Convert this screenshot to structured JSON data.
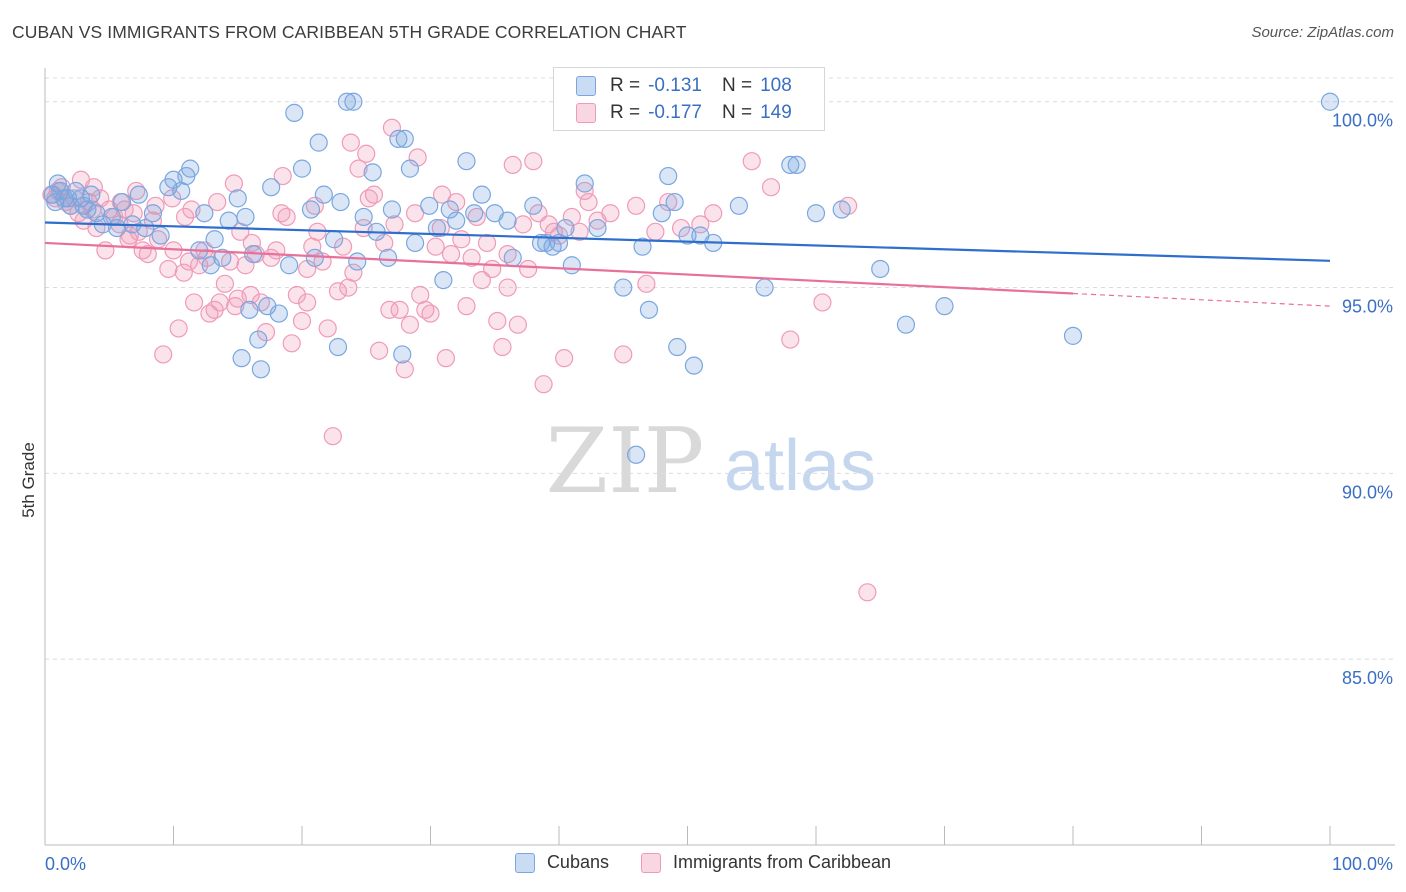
{
  "header": {
    "title": "CUBAN VS IMMIGRANTS FROM CARIBBEAN 5TH GRADE CORRELATION CHART",
    "source": "Source: ZipAtlas.com"
  },
  "watermark": {
    "zip": "ZIP",
    "atlas": "atlas"
  },
  "legend": {
    "r_label": "R =",
    "n_label": "N =",
    "series": [
      {
        "name": "Cubans",
        "r": "-0.131",
        "n": "108",
        "color": "#7aa7e0"
      },
      {
        "name": "Immigrants from Caribbean",
        "r": "-0.177",
        "n": "149",
        "color": "#ef9bb7"
      }
    ]
  },
  "chart_data": {
    "type": "scatter",
    "title": "CUBAN VS IMMIGRANTS FROM CARIBBEAN 5TH GRADE CORRELATION CHART",
    "xlabel": "",
    "ylabel": "5th Grade",
    "x_ticks": [
      "0.0%",
      "100.0%"
    ],
    "y_ticks": [
      "100.0%",
      "95.0%",
      "90.0%",
      "85.0%"
    ],
    "y_tick_values": [
      100,
      95,
      90,
      85
    ],
    "xlim": [
      0,
      100
    ],
    "ylim": [
      80,
      100.8
    ],
    "grid": "horizontal dashed",
    "legend_position": "top-center",
    "series": [
      {
        "name": "Cubans",
        "color": "#7aa7e0",
        "line_color": "#2f6fcc",
        "trend": {
          "x": [
            0,
            100
          ],
          "y": [
            96.75,
            95.72
          ],
          "dashed_from": null
        },
        "points": [
          [
            0.6,
            97.5
          ],
          [
            0.8,
            97.3
          ],
          [
            1.0,
            97.8
          ],
          [
            1.2,
            97.6
          ],
          [
            1.5,
            97.4
          ],
          [
            1.8,
            97.4
          ],
          [
            2.0,
            97.2
          ],
          [
            2.4,
            97.6
          ],
          [
            2.8,
            97.4
          ],
          [
            3.0,
            97.2
          ],
          [
            3.3,
            97.1
          ],
          [
            3.6,
            97.5
          ],
          [
            4.0,
            97.0
          ],
          [
            4.5,
            96.7
          ],
          [
            5.2,
            96.9
          ],
          [
            5.6,
            96.6
          ],
          [
            6.0,
            97.3
          ],
          [
            6.8,
            96.7
          ],
          [
            7.3,
            97.5
          ],
          [
            7.8,
            96.6
          ],
          [
            8.4,
            97.0
          ],
          [
            9.0,
            96.4
          ],
          [
            9.6,
            97.7
          ],
          [
            10.0,
            97.9
          ],
          [
            10.6,
            97.6
          ],
          [
            11.0,
            98.0
          ],
          [
            11.3,
            98.2
          ],
          [
            12.0,
            96.0
          ],
          [
            12.4,
            97.0
          ],
          [
            12.9,
            95.6
          ],
          [
            13.2,
            96.3
          ],
          [
            13.8,
            95.8
          ],
          [
            14.3,
            96.8
          ],
          [
            15.0,
            97.4
          ],
          [
            15.3,
            93.1
          ],
          [
            15.6,
            96.9
          ],
          [
            15.9,
            94.4
          ],
          [
            16.2,
            95.9
          ],
          [
            16.6,
            93.6
          ],
          [
            16.8,
            92.8
          ],
          [
            17.3,
            94.5
          ],
          [
            17.6,
            97.7
          ],
          [
            18.2,
            94.3
          ],
          [
            19.0,
            95.6
          ],
          [
            19.4,
            99.7
          ],
          [
            20.0,
            98.2
          ],
          [
            20.7,
            97.1
          ],
          [
            21.0,
            95.8
          ],
          [
            21.3,
            98.9
          ],
          [
            21.7,
            97.5
          ],
          [
            22.5,
            96.3
          ],
          [
            22.8,
            93.4
          ],
          [
            23.0,
            97.3
          ],
          [
            23.5,
            100.0
          ],
          [
            24.0,
            100.0
          ],
          [
            24.3,
            95.7
          ],
          [
            24.8,
            96.9
          ],
          [
            25.5,
            98.1
          ],
          [
            25.8,
            96.5
          ],
          [
            26.7,
            95.8
          ],
          [
            27.0,
            97.1
          ],
          [
            27.5,
            99.0
          ],
          [
            27.8,
            93.2
          ],
          [
            28.0,
            99.0
          ],
          [
            28.4,
            98.2
          ],
          [
            28.8,
            96.2
          ],
          [
            29.9,
            97.2
          ],
          [
            30.5,
            96.6
          ],
          [
            31.0,
            95.2
          ],
          [
            31.5,
            97.1
          ],
          [
            32.0,
            96.8
          ],
          [
            32.8,
            98.4
          ],
          [
            33.4,
            97.0
          ],
          [
            34.0,
            97.5
          ],
          [
            35.0,
            97.0
          ],
          [
            36.0,
            96.8
          ],
          [
            36.4,
            95.8
          ],
          [
            38.0,
            97.2
          ],
          [
            38.6,
            96.2
          ],
          [
            39.0,
            96.2
          ],
          [
            39.5,
            96.1
          ],
          [
            40.0,
            96.2
          ],
          [
            40.5,
            96.6
          ],
          [
            41.0,
            95.6
          ],
          [
            42.0,
            97.8
          ],
          [
            43.0,
            96.6
          ],
          [
            45.0,
            95.0
          ],
          [
            46.5,
            96.1
          ],
          [
            47.0,
            94.4
          ],
          [
            48.0,
            97.0
          ],
          [
            48.5,
            98.0
          ],
          [
            49.0,
            97.3
          ],
          [
            50.0,
            96.4
          ],
          [
            51.0,
            96.4
          ],
          [
            52.0,
            96.2
          ],
          [
            54.0,
            97.2
          ],
          [
            56.0,
            95.0
          ],
          [
            58.0,
            98.3
          ],
          [
            58.5,
            98.3
          ],
          [
            60.0,
            97.0
          ],
          [
            62.0,
            97.1
          ],
          [
            65.0,
            95.5
          ],
          [
            67.0,
            94.0
          ],
          [
            70.0,
            94.5
          ],
          [
            80.0,
            93.7
          ],
          [
            100.0,
            100.0
          ],
          [
            49.2,
            93.4
          ],
          [
            46.0,
            90.5
          ],
          [
            50.5,
            92.9
          ]
        ]
      },
      {
        "name": "Immigrants from Caribbean",
        "color": "#ef9bb7",
        "line_color": "#e8709a",
        "trend": {
          "x": [
            0,
            100
          ],
          "y": [
            96.2,
            94.5
          ],
          "dashed_from": 80
        },
        "points": [
          [
            0.5,
            97.5
          ],
          [
            0.8,
            97.4
          ],
          [
            1.0,
            97.6
          ],
          [
            1.3,
            97.7
          ],
          [
            1.6,
            97.3
          ],
          [
            2.0,
            97.2
          ],
          [
            2.3,
            97.4
          ],
          [
            2.6,
            97.0
          ],
          [
            3.0,
            96.8
          ],
          [
            3.4,
            97.3
          ],
          [
            3.7,
            97.1
          ],
          [
            4.0,
            96.6
          ],
          [
            4.3,
            97.4
          ],
          [
            4.7,
            96.0
          ],
          [
            5.0,
            97.1
          ],
          [
            5.4,
            96.9
          ],
          [
            5.8,
            96.7
          ],
          [
            6.2,
            97.1
          ],
          [
            6.5,
            96.3
          ],
          [
            6.9,
            97.0
          ],
          [
            7.3,
            96.5
          ],
          [
            7.6,
            96.0
          ],
          [
            8.0,
            95.9
          ],
          [
            8.4,
            96.8
          ],
          [
            8.8,
            96.3
          ],
          [
            9.2,
            93.2
          ],
          [
            9.6,
            95.5
          ],
          [
            10.0,
            96.0
          ],
          [
            10.4,
            93.9
          ],
          [
            10.8,
            95.4
          ],
          [
            11.2,
            95.7
          ],
          [
            11.6,
            94.6
          ],
          [
            12.0,
            95.6
          ],
          [
            12.4,
            96.0
          ],
          [
            12.8,
            94.3
          ],
          [
            13.2,
            94.4
          ],
          [
            13.6,
            94.6
          ],
          [
            14.0,
            95.1
          ],
          [
            14.4,
            95.7
          ],
          [
            14.8,
            94.5
          ],
          [
            15.2,
            96.5
          ],
          [
            15.6,
            95.6
          ],
          [
            16.0,
            94.8
          ],
          [
            16.4,
            95.9
          ],
          [
            16.8,
            94.6
          ],
          [
            17.2,
            93.8
          ],
          [
            17.6,
            95.8
          ],
          [
            18.0,
            96.0
          ],
          [
            18.4,
            97.0
          ],
          [
            18.8,
            96.9
          ],
          [
            19.2,
            93.5
          ],
          [
            19.6,
            94.8
          ],
          [
            20.0,
            94.1
          ],
          [
            20.4,
            95.5
          ],
          [
            20.8,
            96.1
          ],
          [
            21.2,
            96.5
          ],
          [
            21.6,
            95.7
          ],
          [
            22.0,
            93.9
          ],
          [
            22.4,
            91.0
          ],
          [
            22.8,
            94.9
          ],
          [
            23.2,
            96.1
          ],
          [
            23.6,
            95.0
          ],
          [
            24.0,
            95.4
          ],
          [
            24.4,
            98.2
          ],
          [
            24.8,
            96.6
          ],
          [
            25.2,
            97.4
          ],
          [
            25.6,
            97.5
          ],
          [
            26.0,
            93.3
          ],
          [
            26.4,
            96.2
          ],
          [
            26.8,
            94.4
          ],
          [
            27.2,
            96.7
          ],
          [
            27.6,
            94.4
          ],
          [
            28.0,
            92.8
          ],
          [
            28.4,
            94.0
          ],
          [
            28.8,
            97.0
          ],
          [
            29.2,
            94.8
          ],
          [
            29.6,
            94.4
          ],
          [
            30.0,
            94.3
          ],
          [
            30.4,
            96.1
          ],
          [
            30.8,
            96.6
          ],
          [
            31.2,
            93.1
          ],
          [
            31.6,
            95.9
          ],
          [
            32.0,
            97.3
          ],
          [
            32.4,
            96.3
          ],
          [
            32.8,
            94.5
          ],
          [
            33.2,
            95.8
          ],
          [
            33.6,
            96.9
          ],
          [
            34.0,
            95.2
          ],
          [
            34.4,
            96.2
          ],
          [
            34.8,
            95.5
          ],
          [
            35.2,
            94.1
          ],
          [
            35.6,
            93.4
          ],
          [
            36.0,
            95.9
          ],
          [
            36.4,
            98.3
          ],
          [
            36.8,
            94.0
          ],
          [
            37.2,
            96.7
          ],
          [
            37.6,
            95.5
          ],
          [
            38.0,
            98.4
          ],
          [
            38.4,
            97.0
          ],
          [
            38.8,
            92.4
          ],
          [
            39.2,
            96.7
          ],
          [
            39.6,
            96.5
          ],
          [
            40.0,
            96.4
          ],
          [
            40.4,
            93.1
          ],
          [
            41.0,
            96.9
          ],
          [
            41.6,
            96.5
          ],
          [
            42.3,
            97.3
          ],
          [
            43.0,
            96.8
          ],
          [
            44.0,
            97.0
          ],
          [
            45.0,
            93.2
          ],
          [
            46.0,
            97.2
          ],
          [
            46.8,
            95.1
          ],
          [
            47.5,
            96.5
          ],
          [
            48.5,
            97.3
          ],
          [
            49.5,
            96.6
          ],
          [
            50.5,
            99.9
          ],
          [
            51.0,
            96.7
          ],
          [
            52.0,
            97.0
          ],
          [
            55.0,
            98.4
          ],
          [
            56.5,
            97.7
          ],
          [
            58.0,
            93.6
          ],
          [
            60.5,
            94.6
          ],
          [
            62.5,
            97.2
          ],
          [
            64.0,
            86.8
          ],
          [
            25.0,
            98.6
          ],
          [
            18.5,
            98.0
          ],
          [
            27.0,
            99.3
          ],
          [
            29.0,
            98.5
          ],
          [
            14.7,
            97.8
          ],
          [
            13.4,
            97.3
          ],
          [
            11.4,
            97.1
          ],
          [
            10.9,
            96.9
          ],
          [
            9.9,
            97.4
          ],
          [
            8.6,
            97.2
          ],
          [
            7.1,
            97.6
          ],
          [
            6.6,
            96.4
          ],
          [
            5.9,
            97.3
          ],
          [
            3.8,
            97.7
          ],
          [
            2.8,
            97.9
          ],
          [
            42.0,
            97.6
          ],
          [
            36.0,
            95.0
          ],
          [
            21.0,
            97.2
          ],
          [
            20.4,
            94.6
          ],
          [
            16.1,
            96.2
          ],
          [
            15.0,
            94.7
          ],
          [
            12.6,
            95.8
          ],
          [
            23.8,
            98.9
          ],
          [
            30.9,
            97.5
          ]
        ]
      }
    ]
  }
}
